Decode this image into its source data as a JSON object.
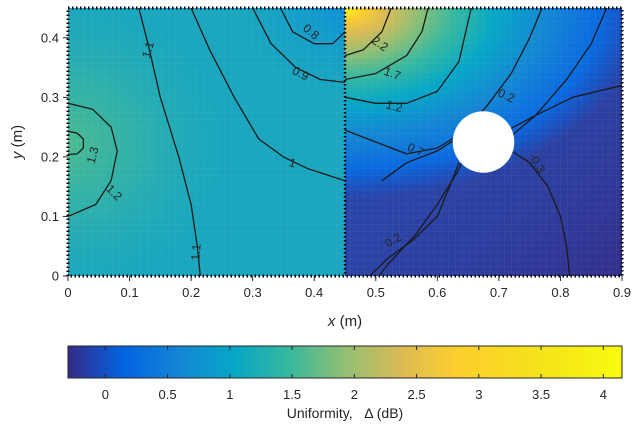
{
  "chart_data": {
    "type": "heatmap",
    "xlabel": {
      "var": "x",
      "unit": "(m)"
    },
    "ylabel": {
      "var": "y",
      "unit": "(m)"
    },
    "xlim": [
      0,
      0.9
    ],
    "ylim": [
      0,
      0.45
    ],
    "x_ticks": [
      "0",
      "0.1",
      "0.2",
      "0.3",
      "0.4",
      "0.5",
      "0.6",
      "0.7",
      "0.8",
      "0.9"
    ],
    "y_ticks": [
      "0",
      "0.1",
      "0.2",
      "0.3",
      "0.4"
    ],
    "colorbar": {
      "label": "Uniformity,   Δ (dB)",
      "range": [
        -0.3,
        4.15
      ],
      "ticks": [
        "0",
        "0.5",
        "1",
        "1.5",
        "2",
        "2.5",
        "3",
        "3.5",
        "4"
      ],
      "colormap": "parula"
    },
    "regions": [
      {
        "name": "left",
        "x_range": [
          0,
          0.45
        ],
        "y_range": [
          0,
          0.45
        ],
        "base_value": 1.05
      },
      {
        "name": "right",
        "x_range": [
          0.45,
          0.9
        ],
        "y_range": [
          0,
          0.45
        ],
        "base_value": 0.0
      }
    ],
    "divider_x": 0.45,
    "obstacle": {
      "shape": "circle",
      "center": [
        0.675,
        0.225
      ],
      "radius": 0.05,
      "color": "#ffffff"
    },
    "contour_labels": [
      {
        "text": "1.1",
        "x": 0.13,
        "y": 0.38,
        "rotation": -75
      },
      {
        "text": "0.8",
        "x": 0.395,
        "y": 0.41,
        "rotation": 40
      },
      {
        "text": "0.9",
        "x": 0.378,
        "y": 0.34,
        "rotation": 28
      },
      {
        "text": "1.3",
        "x": 0.04,
        "y": 0.203,
        "rotation": -75
      },
      {
        "text": "1.2",
        "x": 0.075,
        "y": 0.14,
        "rotation": 45
      },
      {
        "text": "1",
        "x": 0.365,
        "y": 0.19,
        "rotation": 15
      },
      {
        "text": "1.1",
        "x": 0.208,
        "y": 0.04,
        "rotation": -85
      },
      {
        "text": "2.2",
        "x": 0.507,
        "y": 0.39,
        "rotation": 35
      },
      {
        "text": "1.7",
        "x": 0.527,
        "y": 0.34,
        "rotation": 20
      },
      {
        "text": "1.2",
        "x": 0.53,
        "y": 0.285,
        "rotation": 15
      },
      {
        "text": "0.7",
        "x": 0.565,
        "y": 0.212,
        "rotation": 25
      },
      {
        "text": "0.2",
        "x": 0.712,
        "y": 0.303,
        "rotation": 25
      },
      {
        "text": "-0.3",
        "x": 0.762,
        "y": 0.19,
        "rotation": 60
      },
      {
        "text": "0.2",
        "x": 0.528,
        "y": 0.06,
        "rotation": -30
      }
    ],
    "contours": [
      {
        "value": 1.1,
        "points": [
          [
            0.115,
            0.45
          ],
          [
            0.13,
            0.39
          ],
          [
            0.15,
            0.3
          ],
          [
            0.18,
            0.2
          ],
          [
            0.2,
            0.12
          ],
          [
            0.21,
            0.05
          ],
          [
            0.215,
            0
          ]
        ]
      },
      {
        "value": 0.8,
        "points": [
          [
            0.345,
            0.45
          ],
          [
            0.365,
            0.41
          ],
          [
            0.4,
            0.39
          ],
          [
            0.43,
            0.39
          ],
          [
            0.45,
            0.41
          ]
        ]
      },
      {
        "value": 0.9,
        "points": [
          [
            0.3,
            0.45
          ],
          [
            0.33,
            0.39
          ],
          [
            0.37,
            0.35
          ],
          [
            0.41,
            0.33
          ],
          [
            0.45,
            0.325
          ]
        ]
      },
      {
        "value": 1.0,
        "points": [
          [
            0.2,
            0.45
          ],
          [
            0.23,
            0.38
          ],
          [
            0.27,
            0.3
          ],
          [
            0.31,
            0.23
          ],
          [
            0.35,
            0.2
          ],
          [
            0.39,
            0.18
          ],
          [
            0.45,
            0.16
          ]
        ]
      },
      {
        "value": 1.3,
        "points": [
          [
            0,
            0.243
          ],
          [
            0.015,
            0.24
          ],
          [
            0.025,
            0.23
          ],
          [
            0.025,
            0.215
          ],
          [
            0.015,
            0.205
          ],
          [
            0,
            0.204
          ]
        ]
      },
      {
        "value": 1.2,
        "points": [
          [
            0,
            0.29
          ],
          [
            0.04,
            0.28
          ],
          [
            0.07,
            0.25
          ],
          [
            0.08,
            0.21
          ],
          [
            0.07,
            0.16
          ],
          [
            0.045,
            0.12
          ],
          [
            0,
            0.1
          ]
        ]
      },
      {
        "value": 2.2,
        "points": [
          [
            0.45,
            0.37
          ],
          [
            0.48,
            0.38
          ],
          [
            0.51,
            0.41
          ],
          [
            0.525,
            0.45
          ]
        ]
      },
      {
        "value": 1.7,
        "points": [
          [
            0.45,
            0.33
          ],
          [
            0.5,
            0.34
          ],
          [
            0.55,
            0.37
          ],
          [
            0.575,
            0.41
          ],
          [
            0.585,
            0.45
          ]
        ]
      },
      {
        "value": 1.2,
        "points": [
          [
            0.45,
            0.3
          ],
          [
            0.5,
            0.29
          ],
          [
            0.55,
            0.29
          ],
          [
            0.6,
            0.31
          ],
          [
            0.635,
            0.36
          ],
          [
            0.655,
            0.45
          ]
        ]
      },
      {
        "value": 0.7,
        "points": [
          [
            0.45,
            0.245
          ],
          [
            0.5,
            0.225
          ],
          [
            0.55,
            0.205
          ],
          [
            0.6,
            0.215
          ],
          [
            0.64,
            0.24
          ],
          [
            0.68,
            0.285
          ],
          [
            0.72,
            0.34
          ],
          [
            0.75,
            0.4
          ],
          [
            0.77,
            0.45
          ]
        ]
      },
      {
        "value": 0.2,
        "points": [
          [
            0.51,
            0.16
          ],
          [
            0.55,
            0.19
          ],
          [
            0.6,
            0.21
          ],
          [
            0.63,
            0.23
          ]
        ]
      },
      {
        "value": 0.2,
        "points": [
          [
            0.72,
            0.235
          ],
          [
            0.76,
            0.27
          ],
          [
            0.81,
            0.33
          ],
          [
            0.85,
            0.39
          ],
          [
            0.875,
            0.45
          ]
        ]
      },
      {
        "value": 0.2,
        "points": [
          [
            0.635,
            0.19
          ],
          [
            0.62,
            0.15
          ],
          [
            0.6,
            0.1
          ],
          [
            0.56,
            0.06
          ],
          [
            0.52,
            0.03
          ],
          [
            0.49,
            0
          ]
        ]
      },
      {
        "value": -0.3,
        "points": [
          [
            0.72,
            0.21
          ],
          [
            0.75,
            0.19
          ],
          [
            0.78,
            0.15
          ],
          [
            0.8,
            0.1
          ],
          [
            0.81,
            0.05
          ],
          [
            0.815,
            0
          ]
        ]
      },
      {
        "value": -0.3,
        "points": [
          [
            0.715,
            0.245
          ],
          [
            0.76,
            0.27
          ],
          [
            0.82,
            0.3
          ],
          [
            0.9,
            0.32
          ]
        ]
      },
      {
        "value": -0.3,
        "points": [
          [
            0.64,
            0.19
          ],
          [
            0.63,
            0.17
          ],
          [
            0.6,
            0.12
          ],
          [
            0.565,
            0.07
          ],
          [
            0.52,
            0.02
          ],
          [
            0.505,
            0
          ]
        ]
      }
    ]
  }
}
